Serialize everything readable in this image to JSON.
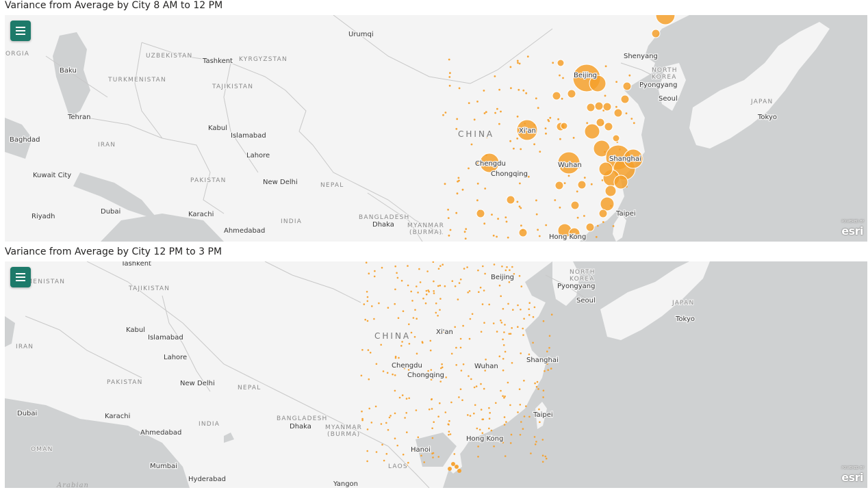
{
  "panels": [
    {
      "title": "Variance from Average by City 8 AM to 12 PM",
      "cities": [
        "Urumqi",
        "Baku",
        "Tashkent",
        "Tehran",
        "Kabul",
        "Islamabad",
        "Baghdad",
        "Lahore",
        "Kuwait City",
        "New Delhi",
        "Dubai",
        "Riyadh",
        "Karachi",
        "Ahmedabad",
        "Dhaka",
        "Beijing",
        "Shenyang",
        "Pyongyang",
        "Seoul",
        "Tokyo",
        "Xi'an",
        "Chengdu",
        "Chongqing",
        "Wuhan",
        "Shanghai",
        "Taipei",
        "Hong Kong"
      ],
      "countries": [
        "UZBEKISTAN",
        "KYRGYZSTAN",
        "TURKMENISTAN",
        "TAJIKISTAN",
        "IRAN",
        "PAKISTAN",
        "NEPAL",
        "INDIA",
        "BANGLADESH",
        "MYANMAR",
        "(BURMA)",
        "NORTH",
        "KOREA",
        "JAPAN",
        "ORGIA"
      ],
      "big_label": "CHINA"
    },
    {
      "title": "Variance from Average by City 12 PM to 3 PM",
      "cities": [
        "Tashkent",
        "Beijing",
        "Pyongyang",
        "Seoul",
        "Tokyo",
        "Kabul",
        "Islamabad",
        "Xi'an",
        "Lahore",
        "Chengdu",
        "Chongqing",
        "Wuhan",
        "Shanghai",
        "New Delhi",
        "Dubai",
        "Karachi",
        "Ahmedabad",
        "Dhaka",
        "Taipei",
        "Hong Kong",
        "Hanoi",
        "Mumbai",
        "Hyderabad",
        "Yangon"
      ],
      "countries": [
        "URKMENISTAN",
        "TAJIKISTAN",
        "IRAN",
        "PAKISTAN",
        "NEPAL",
        "INDIA",
        "BANGLADESH",
        "MYANMAR",
        "(BURMA)",
        "NORTH",
        "KOREA",
        "JAPAN",
        "OMAN",
        "LAOS"
      ],
      "big_label": "CHINA",
      "sea": "Arabian"
    }
  ],
  "attribution": {
    "brand": "esri",
    "powered": "POWERED BY"
  },
  "colors": {
    "marker": "#f5a02c",
    "land": "#f4f4f4",
    "water": "#cfd1d2",
    "menu": "#1d7a6a"
  }
}
